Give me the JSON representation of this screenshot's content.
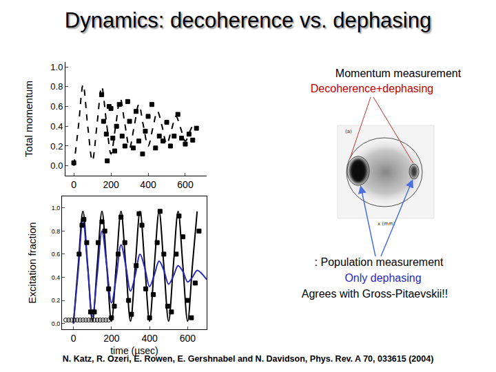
{
  "title": "Dynamics: decoherence vs. dephasing",
  "texts": [
    {
      "text": "Momentum measurement",
      "color": "#000000"
    },
    {
      "text": "Decoherence+dephasing",
      "color": "#c00000"
    },
    {
      "text": ": Population measurement",
      "color": "#000000"
    },
    {
      "text": "Only dephasing",
      "color": "#2a2ab8"
    },
    {
      "text": "Agrees with Gross-Pitaevskii!!",
      "color": "#000000"
    }
  ],
  "inset": {
    "labels": [
      "(a)",
      "x (mm)"
    ]
  },
  "citation": "N. Katz, R. Ozeri, E. Rowen, E. Gershnabel and N. Davidson, Phys. Rev. A 70, 033615 (2004)",
  "chart_data": [
    {
      "type": "line",
      "ylabel": "Total momentum",
      "grid": false,
      "xlim": [
        -45,
        715
      ],
      "xticks": [
        0,
        200,
        400,
        600
      ],
      "ylim": [
        -0.1,
        1.05
      ],
      "yticks": [
        {
          "value": 0,
          "label": "0.0"
        },
        {
          "value": 0.2,
          "label": "0.2"
        },
        {
          "value": 0.4,
          "label": "0.4"
        },
        {
          "value": 0.6,
          "label": "0.6"
        },
        {
          "value": 0.8,
          "label": "0.8"
        },
        {
          "value": 1.0,
          "label": "1.0"
        }
      ],
      "series": [
        {
          "type": "line",
          "line_style": "dashed",
          "color": "#000000",
          "x": [
            0,
            25,
            50,
            75,
            100,
            125,
            150,
            175,
            200,
            225,
            250,
            275,
            300,
            325,
            350,
            375,
            400,
            425,
            450,
            475,
            500,
            525,
            550,
            575,
            600,
            625,
            650
          ],
          "values": [
            0.0,
            0.4,
            0.82,
            0.4,
            0.05,
            0.42,
            0.8,
            0.45,
            0.12,
            0.4,
            0.68,
            0.42,
            0.18,
            0.4,
            0.62,
            0.4,
            0.2,
            0.38,
            0.55,
            0.4,
            0.22,
            0.36,
            0.5,
            0.38,
            0.25,
            0.35,
            0.45
          ]
        },
        {
          "type": "scatter",
          "marker": "square",
          "color": "#000000",
          "x": [
            0,
            150,
            160,
            175,
            180,
            190,
            200,
            210,
            220,
            230,
            245,
            260,
            275,
            290,
            300,
            320,
            335,
            350,
            370,
            385,
            400,
            420,
            440,
            460,
            480,
            500,
            520,
            540,
            560,
            580,
            600,
            620,
            640,
            660
          ],
          "values": [
            0.03,
            0.72,
            0.45,
            0.32,
            0.05,
            0.6,
            0.58,
            0.28,
            0.15,
            0.4,
            0.62,
            0.3,
            0.2,
            0.65,
            0.45,
            0.18,
            0.55,
            0.25,
            0.12,
            0.35,
            0.5,
            0.62,
            0.18,
            0.3,
            0.25,
            0.44,
            0.2,
            0.3,
            0.52,
            0.28,
            0.22,
            0.32,
            0.26,
            0.38
          ]
        }
      ]
    },
    {
      "type": "line",
      "xlabel": "time (µsec)",
      "ylabel": "Excitation fraction",
      "grid": false,
      "xlim": [
        -60,
        700
      ],
      "xticks": [
        0,
        200,
        400,
        600
      ],
      "ylim": [
        -0.05,
        1.1
      ],
      "yticks": [
        {
          "value": 0,
          "label": "0.0"
        },
        {
          "value": 0.2,
          "label": "0.2"
        },
        {
          "value": 0.4,
          "label": "0.4"
        },
        {
          "value": 0.6,
          "label": "0.6"
        },
        {
          "value": 0.8,
          "label": "0.8"
        },
        {
          "value": 1.0,
          "label": "1.0"
        }
      ],
      "series": [
        {
          "type": "line",
          "line_style": "solid",
          "color": "#000000",
          "x": [
            0,
            25,
            50,
            75,
            100,
            125,
            150,
            175,
            200,
            225,
            250,
            275,
            300,
            325,
            350,
            375,
            400,
            425,
            450,
            475,
            500,
            525,
            550,
            575,
            600,
            625,
            650
          ],
          "values": [
            0.0,
            0.5,
            0.97,
            0.5,
            0.02,
            0.5,
            0.97,
            0.5,
            0.02,
            0.5,
            0.97,
            0.5,
            0.02,
            0.5,
            0.97,
            0.5,
            0.02,
            0.5,
            0.97,
            0.5,
            0.02,
            0.5,
            0.97,
            0.5,
            0.02,
            0.5,
            0.97
          ]
        },
        {
          "type": "line",
          "line_style": "solid",
          "color": "#2a2ab8",
          "x": [
            0,
            25,
            50,
            75,
            100,
            125,
            150,
            175,
            200,
            225,
            250,
            275,
            300,
            325,
            350,
            375,
            400,
            425,
            450,
            475,
            500,
            525,
            550,
            575,
            600,
            625,
            650,
            675,
            700
          ],
          "values": [
            0.0,
            0.45,
            0.9,
            0.48,
            0.06,
            0.42,
            0.8,
            0.5,
            0.18,
            0.4,
            0.68,
            0.5,
            0.28,
            0.42,
            0.6,
            0.48,
            0.32,
            0.42,
            0.54,
            0.46,
            0.34,
            0.41,
            0.5,
            0.45,
            0.36,
            0.4,
            0.46,
            0.43,
            0.38
          ]
        },
        {
          "type": "scatter",
          "marker": "square",
          "color": "#000000",
          "x": [
            30,
            45,
            55,
            70,
            90,
            110,
            130,
            150,
            165,
            185,
            200,
            215,
            235,
            250,
            270,
            290,
            305,
            330,
            345,
            360,
            380,
            400,
            420,
            440,
            455,
            475,
            495,
            515,
            540,
            555,
            575,
            600,
            620,
            640,
            660
          ],
          "values": [
            0.6,
            0.85,
            0.9,
            0.7,
            0.1,
            0.1,
            0.7,
            0.88,
            0.8,
            0.3,
            0.05,
            0.15,
            0.6,
            0.92,
            0.7,
            0.2,
            0.08,
            0.5,
            0.95,
            0.85,
            0.3,
            0.05,
            0.25,
            0.7,
            0.97,
            0.6,
            0.15,
            0.1,
            0.6,
            0.93,
            0.75,
            0.2,
            0.05,
            0.35,
            0.8
          ]
        },
        {
          "type": "scatter",
          "marker": "circle-open",
          "color": "#000000",
          "x": [
            -40,
            -25,
            -10,
            5,
            20,
            35,
            50,
            65,
            80,
            95,
            110,
            125,
            140,
            155,
            170,
            185
          ],
          "values": [
            0.03,
            0.03,
            0.03,
            0.03,
            0.03,
            0.03,
            0.03,
            0.03,
            0.03,
            0.03,
            0.03,
            0.03,
            0.03,
            0.03,
            0.03,
            0.03
          ]
        }
      ]
    }
  ]
}
